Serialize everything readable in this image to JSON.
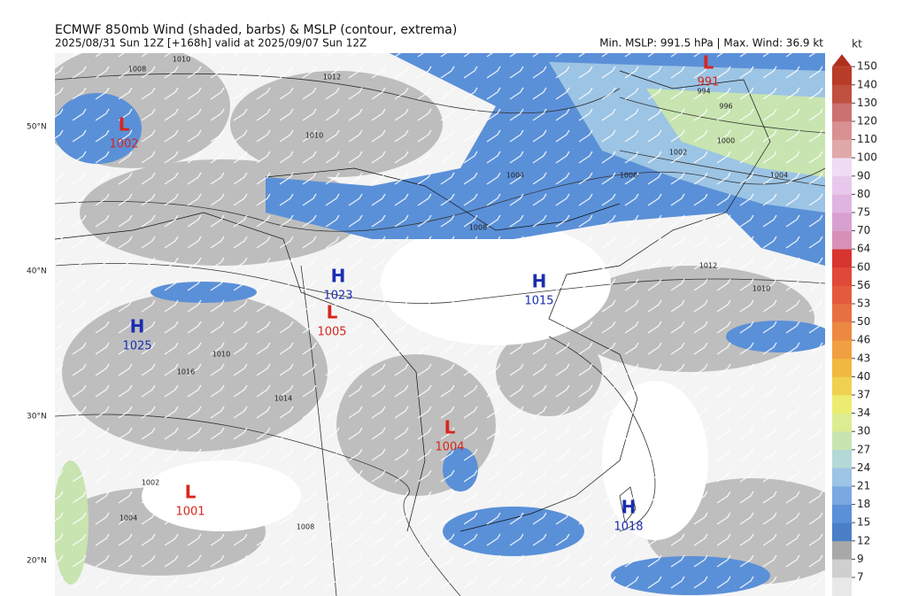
{
  "header": {
    "title": "ECMWF 850mb Wind (shaded, barbs) & MSLP (contour, extrema)",
    "subtitle": "2025/08/31 Sun 12Z [+168h] valid at 2025/09/07 Sun 12Z",
    "stats": "Min. MSLP: 991.5 hPa | Max. Wind: 36.9 kt"
  },
  "latitudes": [
    "50°N",
    "40°N",
    "30°N",
    "20°N"
  ],
  "centers": [
    {
      "kind": "L",
      "value": 991
    },
    {
      "kind": "L",
      "value": 1002
    },
    {
      "kind": "H",
      "value": 1023
    },
    {
      "kind": "L",
      "value": 1005
    },
    {
      "kind": "H",
      "value": 1015
    },
    {
      "kind": "H",
      "value": 1025
    },
    {
      "kind": "L",
      "value": 1004
    },
    {
      "kind": "L",
      "value": 1001
    },
    {
      "kind": "H",
      "value": 1018
    }
  ],
  "contour_labels": [
    1010,
    1008,
    1012,
    1010,
    1004,
    1008,
    1000,
    1002,
    994,
    996,
    1004,
    1006,
    1010,
    1012,
    1014,
    1016,
    1002,
    1004,
    1008,
    1010
  ],
  "colorbar": {
    "unit": "kt",
    "levels": [
      7,
      9,
      12,
      15,
      18,
      21,
      24,
      27,
      30,
      34,
      37,
      40,
      43,
      46,
      50,
      53,
      56,
      60,
      64,
      70,
      75,
      80,
      90,
      100,
      110,
      120,
      130,
      140,
      150
    ],
    "colors": [
      "#cfcfcf",
      "#a8a8a8",
      "#4a7fc8",
      "#5a90d8",
      "#7aa8e0",
      "#9cc4e4",
      "#b4d8d8",
      "#c8e4b0",
      "#dcec90",
      "#ecec70",
      "#f0d050",
      "#f0b840",
      "#f0a040",
      "#ec8840",
      "#e87040",
      "#e45a3c",
      "#e04838",
      "#d83430",
      "#d890b8",
      "#d8a0d0",
      "#e0b4e0",
      "#e8c8ec",
      "#f0dcf4",
      "#e0a8a8",
      "#d89090",
      "#cc7070",
      "#c05040",
      "#b83c28",
      "#b03020"
    ]
  }
}
